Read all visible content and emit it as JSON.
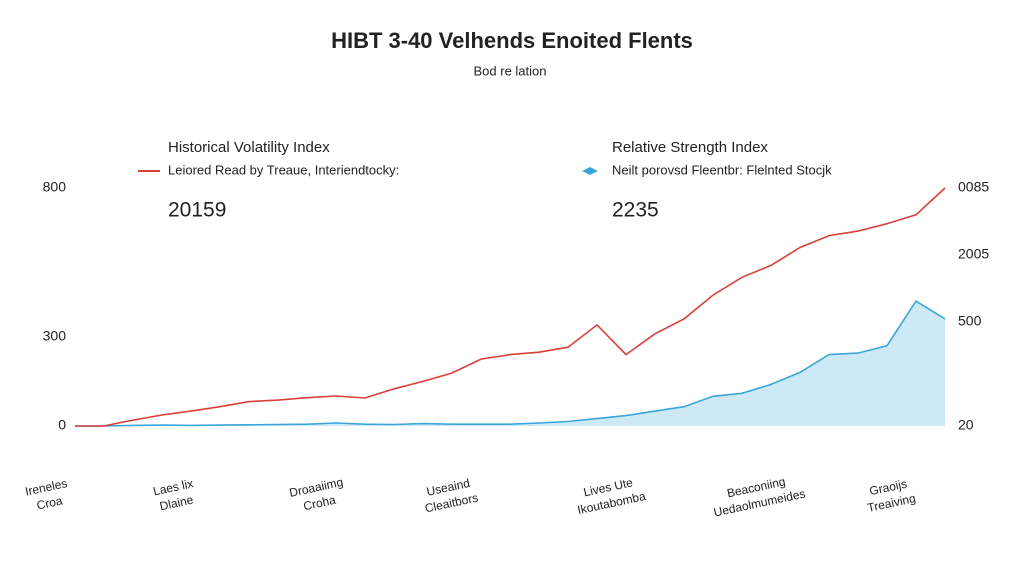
{
  "chart_data": {
    "type": "line",
    "title": "HIBT 3-40 Velhends Enoited Flents",
    "subtitle": "Bod re lation",
    "panels": [
      {
        "title": "Historical Volatility Index",
        "subtitle": "Leiored Read by Treaue, Interiendtocky:",
        "figure": "20159"
      },
      {
        "title": "Relative Strength Index",
        "subtitle": "Neilt porovsd Fleentbr: Flelnted Stocjk",
        "figure": "2235"
      }
    ],
    "series": [
      {
        "name": "Historical Volatility Index",
        "color": "#d9403a",
        "area": false,
        "values": [
          0,
          0,
          20,
          37,
          50,
          65,
          82,
          87,
          95,
          101,
          94,
          125,
          150,
          178,
          225,
          240,
          248,
          265,
          340,
          240,
          310,
          360,
          440,
          500,
          540,
          600,
          640,
          655,
          680,
          710,
          800
        ]
      },
      {
        "name": "Relative Strength Index",
        "color": "#3aa6da",
        "area": true,
        "values": [
          0,
          0,
          2,
          3,
          2,
          3,
          4,
          5,
          6,
          10,
          6,
          5,
          8,
          6,
          6,
          6,
          10,
          15,
          25,
          35,
          50,
          65,
          100,
          110,
          140,
          180,
          240,
          245,
          270,
          420,
          360
        ]
      }
    ],
    "ylim": [
      0,
      800
    ],
    "yticks": [
      0,
      300,
      800
    ],
    "right_labels": [
      "0085",
      "2005",
      "500",
      "20"
    ],
    "x_labels": [
      [
        "Ireneles",
        "Croa"
      ],
      [
        "Laes lix",
        "Dlaine"
      ],
      [
        "Droaaiimg",
        "Croha"
      ],
      [
        "Useaind",
        "Cleaitbors"
      ],
      [
        "Lives Ute",
        "Ikoutabomba"
      ],
      [
        "Beaconiing",
        "Uedaolmumeides"
      ],
      [
        "Graoijs",
        "Treaiving"
      ]
    ],
    "grid": false
  }
}
